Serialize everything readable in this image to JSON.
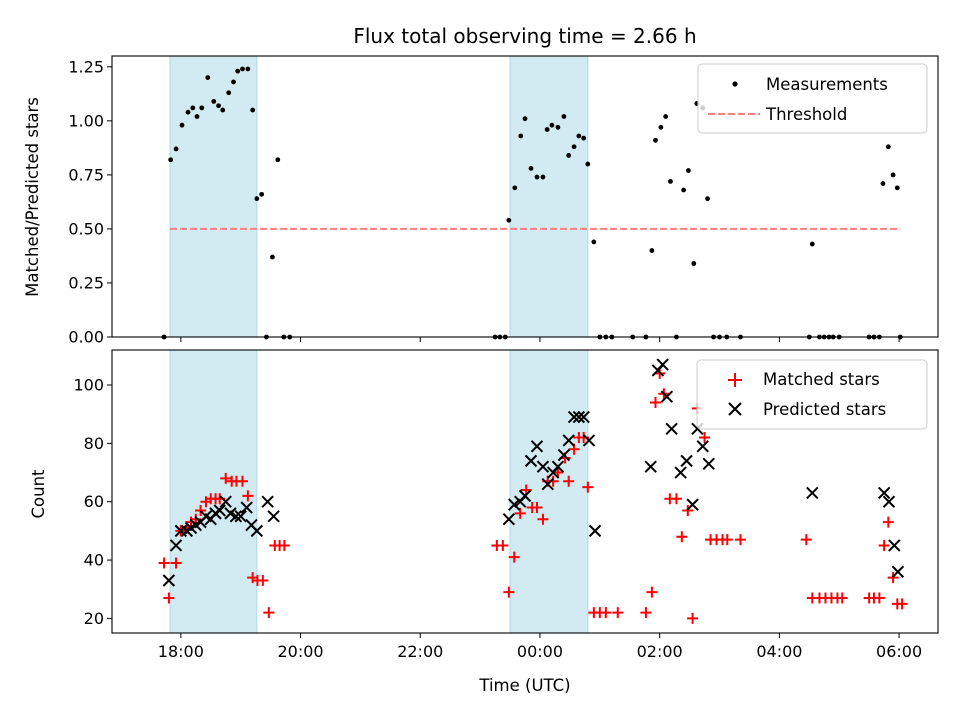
{
  "chart_data": {
    "title": "Flux total observing time = 2.66 h",
    "xlabel": "Time (UTC)",
    "xlim_hours": [
      16.85,
      30.65
    ],
    "x_ticks": [
      {
        "hour": 18,
        "label": "18:00"
      },
      {
        "hour": 20,
        "label": "20:00"
      },
      {
        "hour": 22,
        "label": "22:00"
      },
      {
        "hour": 24,
        "label": "00:00"
      },
      {
        "hour": 26,
        "label": "02:00"
      },
      {
        "hour": 28,
        "label": "04:00"
      },
      {
        "hour": 30,
        "label": "06:00"
      }
    ],
    "shaded_intervals_hours": [
      [
        17.82,
        19.27
      ],
      [
        23.5,
        24.8
      ]
    ],
    "shade_color": "#add8e6",
    "panels": [
      {
        "type": "scatter",
        "ylabel": "Matched/Predicted stars",
        "ylim": [
          0,
          1.3
        ],
        "y_ticks": [
          {
            "value": 0.0,
            "label": "0.00"
          },
          {
            "value": 0.25,
            "label": "0.25"
          },
          {
            "value": 0.5,
            "label": "0.50"
          },
          {
            "value": 0.75,
            "label": "0.75"
          },
          {
            "value": 1.0,
            "label": "1.00"
          },
          {
            "value": 1.25,
            "label": "1.25"
          }
        ],
        "legend": {
          "position": "upper right",
          "entries": [
            "Measurements",
            "Threshold"
          ]
        },
        "series": [
          {
            "name": "Measurements",
            "marker": "dot",
            "color": "#000000",
            "points": [
              [
                17.72,
                0.0
              ],
              [
                17.83,
                0.82
              ],
              [
                17.92,
                0.87
              ],
              [
                18.02,
                0.98
              ],
              [
                18.12,
                1.04
              ],
              [
                18.2,
                1.06
              ],
              [
                18.27,
                1.02
              ],
              [
                18.35,
                1.06
              ],
              [
                18.45,
                1.2
              ],
              [
                18.55,
                1.09
              ],
              [
                18.63,
                1.07
              ],
              [
                18.7,
                1.05
              ],
              [
                18.8,
                1.13
              ],
              [
                18.88,
                1.18
              ],
              [
                18.95,
                1.23
              ],
              [
                19.03,
                1.24
              ],
              [
                19.12,
                1.24
              ],
              [
                19.2,
                1.05
              ],
              [
                19.27,
                0.64
              ],
              [
                19.35,
                0.66
              ],
              [
                19.43,
                0.0
              ],
              [
                19.53,
                0.37
              ],
              [
                19.62,
                0.82
              ],
              [
                19.72,
                0.0
              ],
              [
                19.82,
                0.0
              ],
              [
                23.25,
                0.0
              ],
              [
                23.33,
                0.0
              ],
              [
                23.42,
                0.0
              ],
              [
                23.48,
                0.54
              ],
              [
                23.58,
                0.69
              ],
              [
                23.68,
                0.93
              ],
              [
                23.75,
                1.01
              ],
              [
                23.85,
                0.78
              ],
              [
                23.95,
                0.74
              ],
              [
                24.05,
                0.74
              ],
              [
                24.12,
                0.96
              ],
              [
                24.2,
                0.98
              ],
              [
                24.3,
                0.97
              ],
              [
                24.4,
                1.02
              ],
              [
                24.48,
                0.84
              ],
              [
                24.57,
                0.88
              ],
              [
                24.65,
                0.93
              ],
              [
                24.73,
                0.92
              ],
              [
                24.8,
                0.8
              ],
              [
                24.9,
                0.44
              ],
              [
                25.0,
                0.0
              ],
              [
                25.1,
                0.0
              ],
              [
                25.2,
                0.0
              ],
              [
                25.55,
                0.0
              ],
              [
                25.77,
                0.0
              ],
              [
                25.87,
                0.4
              ],
              [
                25.93,
                0.91
              ],
              [
                26.02,
                0.97
              ],
              [
                26.1,
                1.02
              ],
              [
                26.18,
                0.72
              ],
              [
                26.28,
                0.0
              ],
              [
                26.4,
                0.68
              ],
              [
                26.48,
                0.77
              ],
              [
                26.57,
                0.34
              ],
              [
                26.62,
                1.08
              ],
              [
                26.72,
                1.06
              ],
              [
                26.8,
                0.64
              ],
              [
                26.9,
                0.0
              ],
              [
                27.0,
                0.0
              ],
              [
                27.12,
                0.0
              ],
              [
                27.35,
                0.0
              ],
              [
                28.5,
                0.0
              ],
              [
                28.55,
                0.43
              ],
              [
                28.67,
                0.0
              ],
              [
                28.75,
                0.0
              ],
              [
                28.83,
                0.0
              ],
              [
                28.9,
                0.0
              ],
              [
                29.0,
                0.0
              ],
              [
                29.5,
                0.0
              ],
              [
                29.58,
                0.0
              ],
              [
                29.67,
                0.0
              ],
              [
                29.73,
                0.71
              ],
              [
                29.82,
                0.88
              ],
              [
                29.9,
                0.75
              ],
              [
                29.97,
                0.69
              ],
              [
                30.02,
                0.0
              ]
            ]
          },
          {
            "name": "Threshold",
            "style": "dashed",
            "color": "#ff7f7f",
            "x": [
              17.82,
              30.02
            ],
            "y": [
              0.5,
              0.5
            ]
          }
        ]
      },
      {
        "type": "scatter",
        "ylabel": "Count",
        "ylim": [
          15,
          112
        ],
        "y_ticks": [
          {
            "value": 20,
            "label": "20"
          },
          {
            "value": 40,
            "label": "40"
          },
          {
            "value": 60,
            "label": "60"
          },
          {
            "value": 80,
            "label": "80"
          },
          {
            "value": 100,
            "label": "100"
          }
        ],
        "legend": {
          "position": "upper right",
          "entries": [
            "Matched stars",
            "Predicted stars"
          ]
        },
        "series": [
          {
            "name": "Matched stars",
            "marker": "plus",
            "color": "#ff0000",
            "points": [
              [
                17.72,
                39
              ],
              [
                17.8,
                27
              ],
              [
                17.92,
                39
              ],
              [
                18.0,
                50
              ],
              [
                18.1,
                51
              ],
              [
                18.17,
                53
              ],
              [
                18.25,
                54
              ],
              [
                18.33,
                57
              ],
              [
                18.42,
                60
              ],
              [
                18.5,
                61
              ],
              [
                18.58,
                61
              ],
              [
                18.65,
                61
              ],
              [
                18.75,
                68
              ],
              [
                18.85,
                67
              ],
              [
                18.93,
                67
              ],
              [
                19.03,
                67
              ],
              [
                19.12,
                62
              ],
              [
                19.2,
                34
              ],
              [
                19.28,
                33
              ],
              [
                19.37,
                33
              ],
              [
                19.47,
                22
              ],
              [
                19.57,
                45
              ],
              [
                19.65,
                45
              ],
              [
                19.73,
                45
              ],
              [
                23.28,
                45
              ],
              [
                23.38,
                45
              ],
              [
                23.48,
                29
              ],
              [
                23.57,
                41
              ],
              [
                23.67,
                56
              ],
              [
                23.77,
                64
              ],
              [
                23.87,
                58
              ],
              [
                23.95,
                58
              ],
              [
                24.05,
                54
              ],
              [
                24.13,
                67
              ],
              [
                24.22,
                67
              ],
              [
                24.3,
                70
              ],
              [
                24.42,
                75
              ],
              [
                24.48,
                67
              ],
              [
                24.57,
                78
              ],
              [
                24.65,
                82
              ],
              [
                24.73,
                82
              ],
              [
                24.8,
                65
              ],
              [
                24.9,
                22
              ],
              [
                25.0,
                22
              ],
              [
                25.1,
                22
              ],
              [
                25.3,
                22
              ],
              [
                25.77,
                22
              ],
              [
                25.87,
                29
              ],
              [
                25.93,
                94
              ],
              [
                26.0,
                104
              ],
              [
                26.07,
                97
              ],
              [
                26.17,
                61
              ],
              [
                26.28,
                61
              ],
              [
                26.37,
                48
              ],
              [
                26.47,
                57
              ],
              [
                26.55,
                20
              ],
              [
                26.63,
                92
              ],
              [
                26.75,
                82
              ],
              [
                26.85,
                47
              ],
              [
                26.95,
                47
              ],
              [
                27.05,
                47
              ],
              [
                27.13,
                47
              ],
              [
                27.35,
                47
              ],
              [
                28.45,
                47
              ],
              [
                28.55,
                27
              ],
              [
                28.67,
                27
              ],
              [
                28.77,
                27
              ],
              [
                28.87,
                27
              ],
              [
                28.97,
                27
              ],
              [
                29.05,
                27
              ],
              [
                29.5,
                27
              ],
              [
                29.58,
                27
              ],
              [
                29.67,
                27
              ],
              [
                29.75,
                45
              ],
              [
                29.82,
                53
              ],
              [
                29.9,
                34
              ],
              [
                29.97,
                25
              ],
              [
                30.05,
                25
              ]
            ]
          },
          {
            "name": "Predicted stars",
            "marker": "x",
            "color": "#000000",
            "points": [
              [
                17.8,
                33
              ],
              [
                17.92,
                45
              ],
              [
                18.0,
                50
              ],
              [
                18.1,
                50
              ],
              [
                18.17,
                51
              ],
              [
                18.25,
                52
              ],
              [
                18.33,
                53
              ],
              [
                18.42,
                55
              ],
              [
                18.5,
                54
              ],
              [
                18.58,
                56
              ],
              [
                18.65,
                57
              ],
              [
                18.75,
                60
              ],
              [
                18.83,
                56
              ],
              [
                18.92,
                55
              ],
              [
                19.0,
                55
              ],
              [
                19.1,
                58
              ],
              [
                19.18,
                52
              ],
              [
                19.27,
                50
              ],
              [
                19.45,
                60
              ],
              [
                19.55,
                55
              ],
              [
                23.48,
                54
              ],
              [
                23.57,
                59
              ],
              [
                23.67,
                60
              ],
              [
                23.75,
                62
              ],
              [
                23.85,
                74
              ],
              [
                23.95,
                79
              ],
              [
                24.05,
                72
              ],
              [
                24.13,
                66
              ],
              [
                24.22,
                70
              ],
              [
                24.3,
                72
              ],
              [
                24.4,
                76
              ],
              [
                24.48,
                81
              ],
              [
                24.57,
                89
              ],
              [
                24.65,
                89
              ],
              [
                24.73,
                89
              ],
              [
                24.82,
                81
              ],
              [
                24.92,
                50
              ],
              [
                25.85,
                72
              ],
              [
                25.97,
                105
              ],
              [
                26.05,
                107
              ],
              [
                26.12,
                96
              ],
              [
                26.2,
                85
              ],
              [
                26.35,
                70
              ],
              [
                26.45,
                74
              ],
              [
                26.55,
                59
              ],
              [
                26.63,
                85
              ],
              [
                26.72,
                79
              ],
              [
                26.82,
                73
              ],
              [
                28.55,
                63
              ],
              [
                29.75,
                63
              ],
              [
                29.83,
                60
              ],
              [
                29.92,
                45
              ],
              [
                29.98,
                36
              ]
            ]
          }
        ]
      }
    ]
  }
}
